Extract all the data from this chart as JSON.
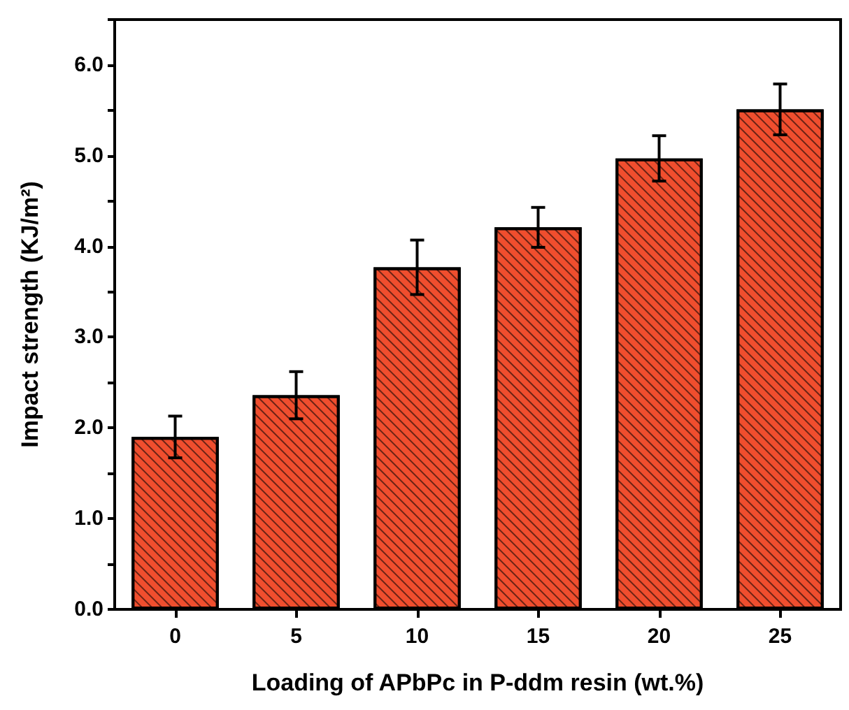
{
  "chart_data": {
    "type": "bar",
    "xlabel": "Loading of APbPc in P-ddm resin (wt.%)",
    "ylabel": "Impact strength (KJ/m²)",
    "categories": [
      "0",
      "5",
      "10",
      "15",
      "20",
      "25"
    ],
    "values": [
      1.9,
      2.36,
      3.77,
      4.21,
      4.97,
      5.51
    ],
    "errors": [
      0.23,
      0.26,
      0.3,
      0.22,
      0.25,
      0.28
    ],
    "color": "#f04e2e",
    "ylim": [
      0,
      6.5
    ],
    "yticks": [
      {
        "value": 0,
        "label": "0.0"
      },
      {
        "value": 0.5,
        "label": null
      },
      {
        "value": 1,
        "label": "1.0"
      },
      {
        "value": 1.5,
        "label": null
      },
      {
        "value": 2,
        "label": "2.0"
      },
      {
        "value": 2.5,
        "label": null
      },
      {
        "value": 3,
        "label": "3.0"
      },
      {
        "value": 3.5,
        "label": null
      },
      {
        "value": 4,
        "label": "4.0"
      },
      {
        "value": 4.5,
        "label": null
      },
      {
        "value": 5,
        "label": "5.0"
      },
      {
        "value": 5.5,
        "label": null
      },
      {
        "value": 6,
        "label": "6.0"
      },
      {
        "value": 6.5,
        "label": null
      }
    ],
    "grid": false
  }
}
